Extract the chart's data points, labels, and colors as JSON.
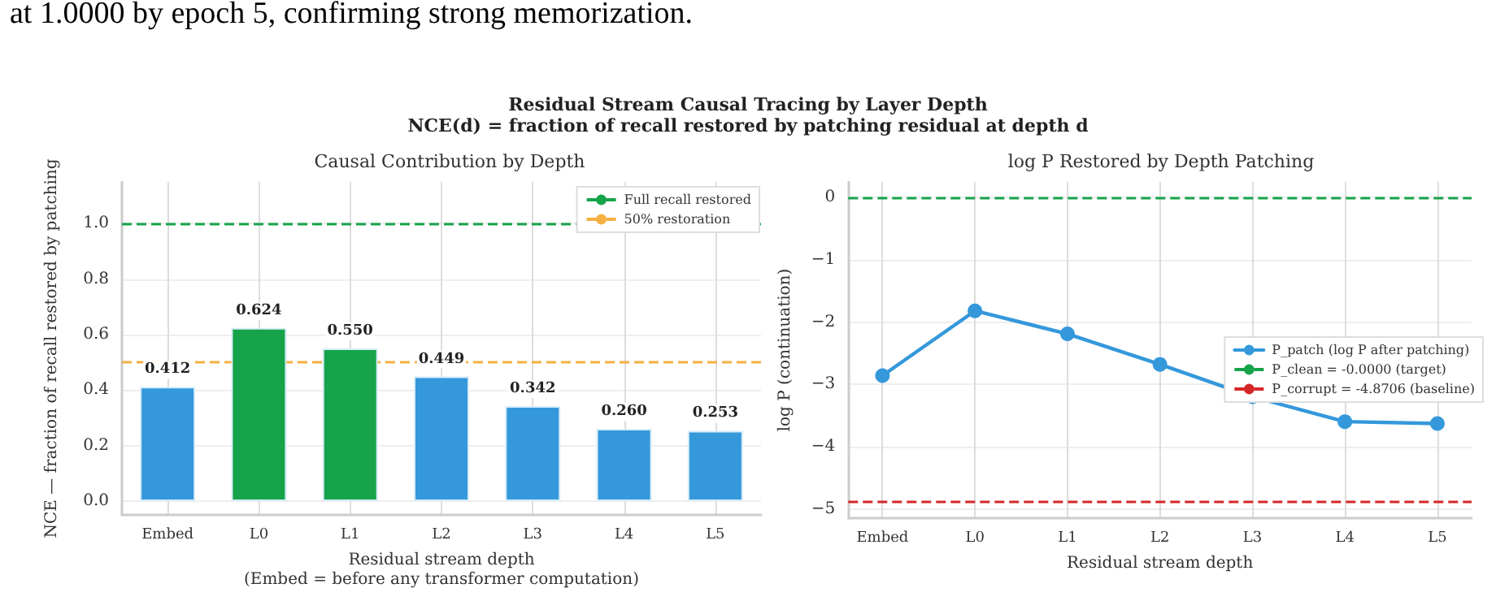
{
  "chart_data": [
    {
      "type": "bar",
      "title": "Causal Contribution by Depth",
      "xlabel": "Residual stream depth\n(Embed = before any transformer computation)",
      "ylabel": "NCE — fraction of recall restored by patching",
      "annotations": [
        "at 1.0000 by epoch 5, confirming strong memorization.",
        "Residual Stream Causal Tracing by Layer Depth",
        "NCE(d) = fraction of recall restored by patching residual at depth d"
      ],
      "categories": [
        "Embed",
        "L0",
        "L1",
        "L2",
        "L3",
        "L4",
        "L5"
      ],
      "values": [
        0.412,
        0.624,
        0.55,
        0.449,
        0.342,
        0.26,
        0.253
      ],
      "colors": [
        "#3498db",
        "#16a34a",
        "#16a34a",
        "#3498db",
        "#3498db",
        "#3498db",
        "#3498db"
      ],
      "value_labels": [
        "0.412",
        "0.624",
        "0.550",
        "0.449",
        "0.342",
        "0.260",
        "0.253"
      ],
      "ylim": [
        -0.05,
        1.15
      ],
      "yticks": [
        {
          "value": 0,
          "label": "0.0"
        },
        0.2,
        0.4,
        0.6,
        0.8,
        {
          "value": 1,
          "label": "1.0"
        }
      ],
      "ref_lines": [
        {
          "axis": "y",
          "value": 1.0,
          "label": "Full recall restored",
          "color": "#16a34a",
          "line_style": "dashed"
        },
        {
          "axis": "y",
          "value": 0.5,
          "label": "50% restoration",
          "color": "#f5b041",
          "line_style": "dashed"
        }
      ],
      "grid": true,
      "legend": "top right"
    },
    {
      "type": "line",
      "title": "log P Restored by Depth Patching",
      "xlabel": "Residual stream depth",
      "ylabel": "log P (continuation)",
      "categories": [
        "Embed",
        "L0",
        "L1",
        "L2",
        "L3",
        "L4",
        "L5"
      ],
      "series": [
        {
          "name": "P_patch (log P after patching)",
          "color": "#3498db",
          "values": [
            -2.86,
            -1.82,
            -2.19,
            -2.68,
            -3.2,
            -3.6,
            -3.63
          ]
        }
      ],
      "marker": "circle",
      "line_style": "solid",
      "ylim": [
        -5.15,
        0.25
      ],
      "yticks": [
        {
          "value": -5,
          "label": "−5"
        },
        {
          "value": -4,
          "label": "−4"
        },
        {
          "value": -3,
          "label": "−3"
        },
        {
          "value": -2,
          "label": "−2"
        },
        {
          "value": -1,
          "label": "−1"
        },
        0
      ],
      "ref_lines": [
        {
          "axis": "y",
          "value": 0,
          "label": "P_clean = -0.0000 (target)",
          "color": "#16a34a",
          "line_style": "dashed"
        },
        {
          "axis": "y",
          "value": -4.8706,
          "label": "P_corrupt = -4.8706 (baseline)",
          "color": "#d62728",
          "line_style": "dashed"
        }
      ],
      "grid": true,
      "legend": "right"
    }
  ]
}
